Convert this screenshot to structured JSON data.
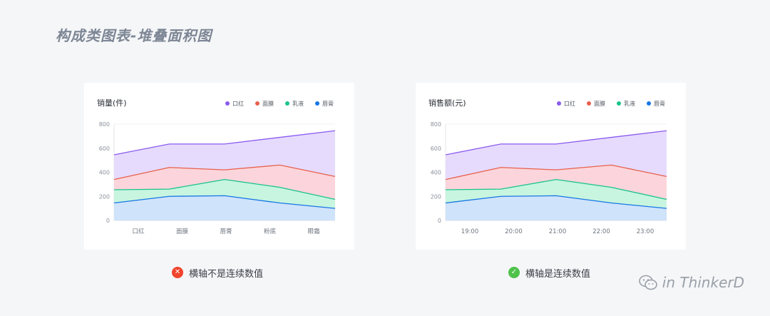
{
  "page": {
    "title": "构成类图表-堆叠面积图",
    "watermark": "in ThinkerD"
  },
  "captions": {
    "left": "横轴不是连续数值",
    "right": "横轴是连续数值",
    "left_badge": "✕",
    "right_badge": "✓",
    "left_badge_color": "#f0442c",
    "right_badge_color": "#4fc24a"
  },
  "chart_data": [
    {
      "type": "area",
      "stacked": true,
      "title": "销量(件)",
      "categories": [
        "口红",
        "面膜",
        "唇膏",
        "粉底",
        "眼霜"
      ],
      "y_ticks": [
        0,
        200,
        400,
        600,
        800
      ],
      "ylim": [
        0,
        800
      ],
      "legend_position": "top-right",
      "series": [
        {
          "name": "唇膏",
          "color": "#1677e5",
          "fill": "#cfe3fa",
          "values": [
            145,
            200,
            205,
            145,
            100
          ]
        },
        {
          "name": "乳液",
          "color": "#19c38d",
          "fill": "#c8f5df",
          "values": [
            110,
            60,
            135,
            130,
            75
          ]
        },
        {
          "name": "面膜",
          "color": "#e8604c",
          "fill": "#fbd5db",
          "values": [
            85,
            180,
            80,
            185,
            190
          ]
        },
        {
          "name": "口红",
          "color": "#8a5bef",
          "fill": "#e6dbfd",
          "values": [
            205,
            195,
            215,
            230,
            380
          ]
        }
      ],
      "legend_order": [
        "口红",
        "面膜",
        "乳液",
        "唇膏"
      ]
    },
    {
      "type": "area",
      "stacked": true,
      "title": "销售额(元)",
      "categories": [
        "19:00",
        "20:00",
        "21:00",
        "22:00",
        "23:00"
      ],
      "y_ticks": [
        0,
        200,
        400,
        600,
        800
      ],
      "ylim": [
        0,
        800
      ],
      "legend_position": "top-right",
      "series": [
        {
          "name": "唇膏",
          "color": "#1677e5",
          "fill": "#cfe3fa",
          "values": [
            145,
            200,
            205,
            145,
            100
          ]
        },
        {
          "name": "乳液",
          "color": "#19c38d",
          "fill": "#c8f5df",
          "values": [
            110,
            60,
            135,
            130,
            75
          ]
        },
        {
          "name": "面膜",
          "color": "#e8604c",
          "fill": "#fbd5db",
          "values": [
            85,
            180,
            80,
            185,
            190
          ]
        },
        {
          "name": "口红",
          "color": "#8a5bef",
          "fill": "#e6dbfd",
          "values": [
            205,
            195,
            215,
            230,
            380
          ]
        }
      ],
      "legend_order": [
        "口红",
        "面膜",
        "乳液",
        "唇膏"
      ]
    }
  ]
}
